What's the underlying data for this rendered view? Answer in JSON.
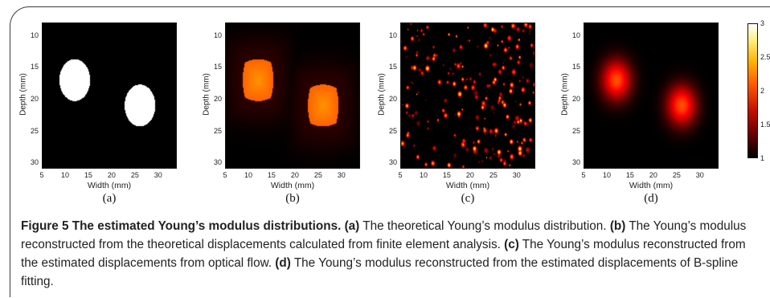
{
  "figure": {
    "y_ticks": [
      "10",
      "15",
      "20",
      "25",
      "30"
    ],
    "x_ticks": [
      "5",
      "10",
      "15",
      "20",
      "25",
      "30"
    ],
    "xlabel": "Width (mm)",
    "ylabel": "Depth (mm)",
    "panels": [
      {
        "label": "(a)"
      },
      {
        "label": "(b)"
      },
      {
        "label": "(c)"
      },
      {
        "label": "(d)"
      }
    ],
    "colorbar": {
      "ticks": [
        "3",
        "2.5",
        "2",
        "1.5",
        "1"
      ],
      "colormap": "hot"
    }
  },
  "chart_data": [
    {
      "type": "heatmap",
      "xlabel": "Width (mm)",
      "ylabel": "Depth (mm)",
      "xlim": [
        5,
        34
      ],
      "ylim": [
        31,
        8
      ],
      "panel": "(a)",
      "inclusions": [
        {
          "x": 12,
          "y": 17,
          "r": 3.3,
          "value": 3
        },
        {
          "x": 26,
          "y": 21,
          "r": 3.3,
          "value": 3
        }
      ],
      "background": 1
    },
    {
      "type": "heatmap",
      "xlabel": "Width (mm)",
      "ylabel": "Depth (mm)",
      "xlim": [
        5,
        34
      ],
      "ylim": [
        31,
        8
      ],
      "panel": "(b)",
      "inclusions": [
        {
          "x": 12,
          "y": 17,
          "r": 3.3,
          "value": 2.2
        },
        {
          "x": 26,
          "y": 21,
          "r": 3.3,
          "value": 2.2
        }
      ],
      "background": 1
    },
    {
      "type": "heatmap",
      "xlabel": "Width (mm)",
      "ylabel": "Depth (mm)",
      "xlim": [
        5,
        34
      ],
      "ylim": [
        31,
        8
      ],
      "panel": "(c)",
      "pattern": "noisy",
      "background": 1
    },
    {
      "type": "heatmap",
      "xlabel": "Width (mm)",
      "ylabel": "Depth (mm)",
      "xlim": [
        5,
        34
      ],
      "ylim": [
        31,
        8
      ],
      "panel": "(d)",
      "inclusions": [
        {
          "x": 12,
          "y": 17,
          "r": 3.3,
          "value": 2
        },
        {
          "x": 26,
          "y": 21,
          "r": 3.3,
          "value": 2
        }
      ],
      "background": 1
    }
  ],
  "caption": {
    "title": "Figure 5 The estimated Young’s modulus distributions.",
    "a_tag": "(a)",
    "a_text": " The theoretical Young’s modulus distribution. ",
    "b_tag": "(b)",
    "b_text": " The Young’s modulus reconstructed from the theoretical displacements calculated from finite element analysis. ",
    "c_tag": "(c)",
    "c_text": " The Young’s modulus reconstructed from the estimated displacements from optical flow. ",
    "d_tag": "(d)",
    "d_text": " The Young’s modulus reconstructed from the estimated displacements of B-spline fitting."
  }
}
